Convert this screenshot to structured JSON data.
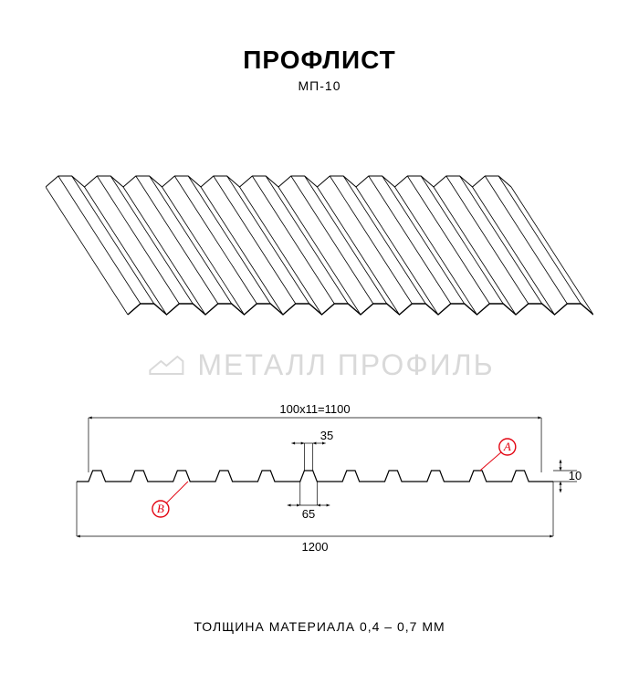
{
  "header": {
    "title": "ПРОФЛИСТ",
    "subtitle": "МП-10",
    "title_fontsize": 28,
    "subtitle_fontsize": 14
  },
  "watermark": {
    "text": "МЕТАЛЛ ПРОФИЛЬ",
    "color": "#d9d9d9",
    "fontsize": 32
  },
  "iso": {
    "stroke": "#000000",
    "stroke_width": 1,
    "ribs": 12,
    "skew_dx": 90,
    "sheet_width": 510,
    "depth_lines": 14
  },
  "section": {
    "stroke": "#000000",
    "stroke_width": 1.2,
    "dim_stroke_width": 0.7,
    "accent": "#e30613",
    "ribs": 11,
    "dims": {
      "pitch_label": "100x11=1100",
      "top_width": "35",
      "bottom_width": "65",
      "total_width": "1200",
      "height": "10"
    },
    "markers": {
      "A": "A",
      "B": "B"
    }
  },
  "footer": {
    "thickness": "ТОЛЩИНА МАТЕРИАЛА 0,4 – 0,7 ММ",
    "fontsize": 14
  },
  "colors": {
    "background": "#ffffff",
    "text": "#000000",
    "dim_line": "#000000"
  }
}
